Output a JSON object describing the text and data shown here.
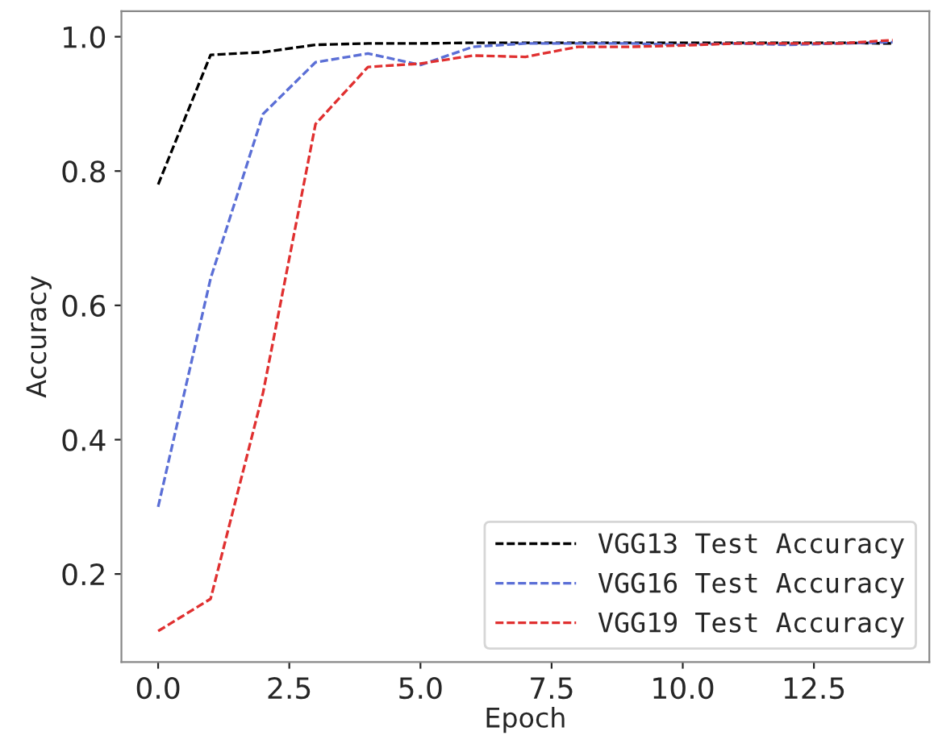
{
  "chart_data": {
    "type": "line",
    "xlabel": "Epoch",
    "ylabel": "Accuracy",
    "x": [
      0,
      1,
      2,
      3,
      4,
      5,
      6,
      7,
      8,
      9,
      10,
      11,
      12,
      13,
      14
    ],
    "series": [
      {
        "name": "VGG13 Test Accuracy",
        "color": "#000000",
        "values": [
          0.78,
          0.973,
          0.977,
          0.988,
          0.99,
          0.99,
          0.991,
          0.991,
          0.991,
          0.991,
          0.991,
          0.991,
          0.991,
          0.991,
          0.99
        ]
      },
      {
        "name": "VGG16 Test Accuracy",
        "color": "#5b6fd6",
        "values": [
          0.3,
          0.64,
          0.885,
          0.962,
          0.975,
          0.958,
          0.985,
          0.99,
          0.99,
          0.99,
          0.988,
          0.99,
          0.988,
          0.99,
          0.992
        ]
      },
      {
        "name": "VGG19 Test Accuracy",
        "color": "#e03030",
        "values": [
          0.115,
          0.163,
          0.47,
          0.87,
          0.955,
          0.96,
          0.972,
          0.97,
          0.985,
          0.985,
          0.987,
          0.99,
          0.99,
          0.99,
          0.995
        ]
      }
    ],
    "xlim": [
      -0.7,
      14.7
    ],
    "ylim": [
      0.069,
      1.038
    ],
    "xticks": [
      {
        "value": 0,
        "label": "0.0"
      },
      2.5,
      {
        "value": 5,
        "label": "5.0"
      },
      7.5,
      {
        "value": 10,
        "label": "10.0"
      },
      12.5
    ],
    "yticks": [
      0.2,
      0.4,
      0.6,
      0.8,
      {
        "value": 1,
        "label": "1.0"
      }
    ],
    "grid": false,
    "legend": "bottom right",
    "line_style": "dashed",
    "marker": "none"
  }
}
